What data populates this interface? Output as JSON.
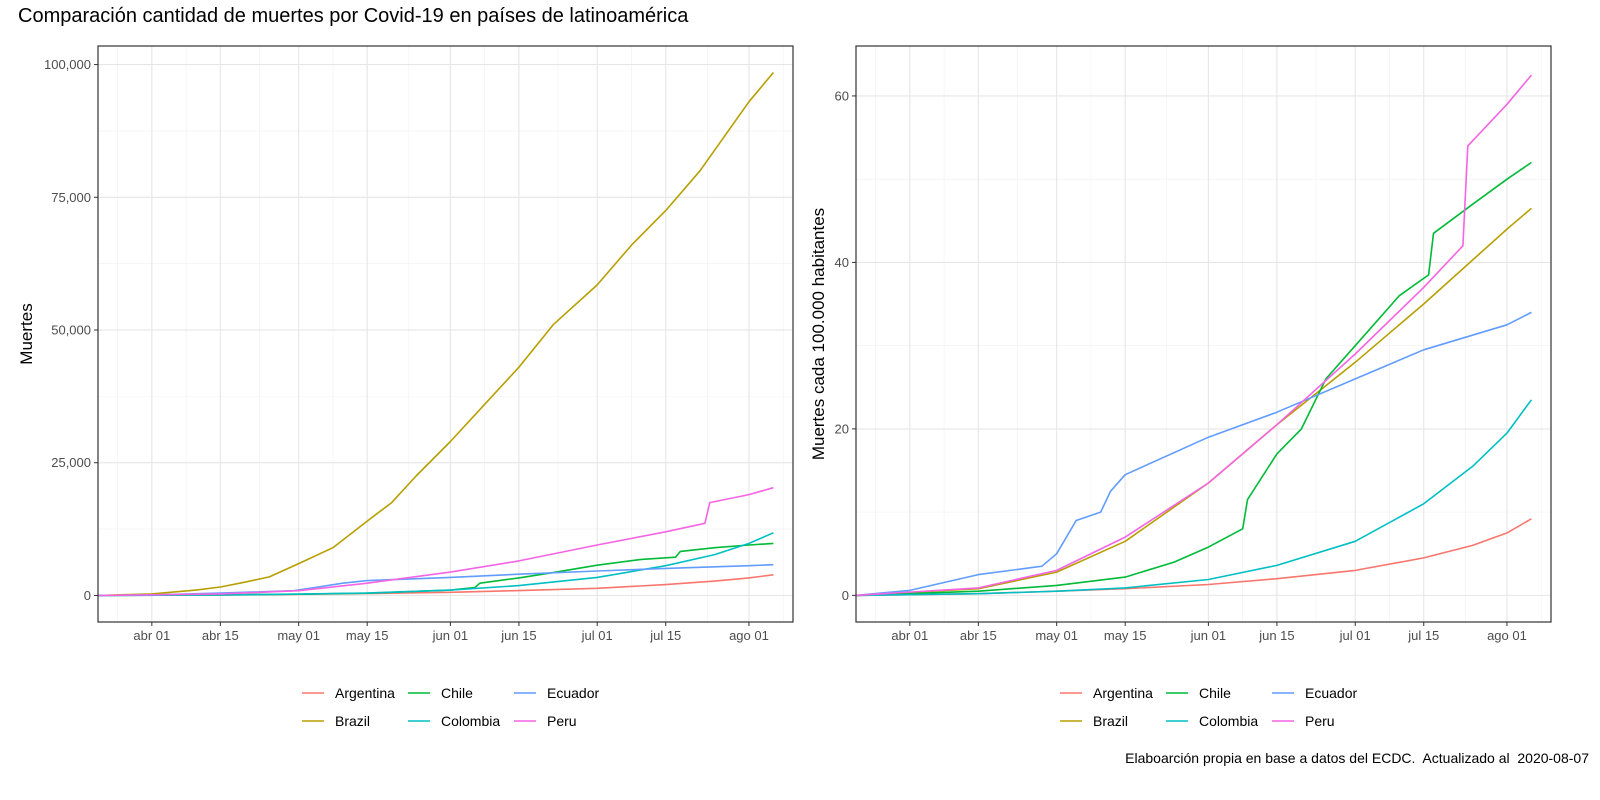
{
  "title": "Comparación cantidad de muertes por Covid-19 en países de latinoamérica",
  "caption": "Elaboarción propia en base a datos del ECDC.  Actualizado al  2020-08-07",
  "colors": {
    "Argentina": "#F8766D",
    "Brazil": "#B79F00",
    "Chile": "#00BA38",
    "Colombia": "#00BFC4",
    "Ecuador": "#619CFF",
    "Peru": "#F564E3"
  },
  "chart_data": [
    {
      "type": "line",
      "xlabel": "",
      "ylabel": "Muertes",
      "xlim": [
        "2020-03-21",
        "2020-08-10"
      ],
      "ylim": [
        -5000,
        103500
      ],
      "x_ticks": [
        "abr 01",
        "abr 15",
        "may 01",
        "may 15",
        "jun 01",
        "jun 15",
        "jul 01",
        "jul 15",
        "ago 01"
      ],
      "y_ticks": [
        "0",
        "25,000",
        "50,000",
        "75,000",
        "100,000"
      ],
      "grid": true,
      "legend_position": "bottom",
      "series": [
        {
          "name": "Argentina",
          "points": [
            [
              "2020-03-21",
              0
            ],
            [
              "2020-04-15",
              90
            ],
            [
              "2020-05-01",
              220
            ],
            [
              "2020-05-15",
              360
            ],
            [
              "2020-06-01",
              600
            ],
            [
              "2020-06-15",
              920
            ],
            [
              "2020-07-01",
              1350
            ],
            [
              "2020-07-15",
              2050
            ],
            [
              "2020-07-25",
              2700
            ],
            [
              "2020-08-01",
              3300
            ],
            [
              "2020-08-06",
              3900
            ]
          ]
        },
        {
          "name": "Brazil",
          "points": [
            [
              "2020-03-21",
              0
            ],
            [
              "2020-04-01",
              300
            ],
            [
              "2020-04-10",
              1000
            ],
            [
              "2020-04-15",
              1600
            ],
            [
              "2020-04-20",
              2500
            ],
            [
              "2020-04-25",
              3500
            ],
            [
              "2020-05-01",
              6000
            ],
            [
              "2020-05-08",
              9000
            ],
            [
              "2020-05-15",
              14000
            ],
            [
              "2020-05-20",
              17500
            ],
            [
              "2020-05-25",
              22500
            ],
            [
              "2020-06-01",
              29000
            ],
            [
              "2020-06-08",
              36000
            ],
            [
              "2020-06-15",
              43000
            ],
            [
              "2020-06-22",
              51000
            ],
            [
              "2020-07-01",
              58500
            ],
            [
              "2020-07-08",
              66000
            ],
            [
              "2020-07-15",
              72500
            ],
            [
              "2020-07-22",
              80000
            ],
            [
              "2020-08-01",
              93000
            ],
            [
              "2020-08-06",
              98500
            ]
          ]
        },
        {
          "name": "Chile",
          "points": [
            [
              "2020-03-21",
              0
            ],
            [
              "2020-04-15",
              100
            ],
            [
              "2020-05-01",
              230
            ],
            [
              "2020-05-15",
              420
            ],
            [
              "2020-06-01",
              1000
            ],
            [
              "2020-06-06",
              1500
            ],
            [
              "2020-06-07",
              2300
            ],
            [
              "2020-06-15",
              3300
            ],
            [
              "2020-06-22",
              4300
            ],
            [
              "2020-07-01",
              5700
            ],
            [
              "2020-07-10",
              6800
            ],
            [
              "2020-07-17",
              7200
            ],
            [
              "2020-07-18",
              8300
            ],
            [
              "2020-07-25",
              9000
            ],
            [
              "2020-08-01",
              9500
            ],
            [
              "2020-08-06",
              9800
            ]
          ]
        },
        {
          "name": "Colombia",
          "points": [
            [
              "2020-03-21",
              0
            ],
            [
              "2020-04-15",
              100
            ],
            [
              "2020-05-01",
              260
            ],
            [
              "2020-05-15",
              460
            ],
            [
              "2020-06-01",
              1000
            ],
            [
              "2020-06-15",
              1850
            ],
            [
              "2020-07-01",
              3400
            ],
            [
              "2020-07-15",
              5600
            ],
            [
              "2020-07-25",
              7700
            ],
            [
              "2020-08-01",
              9800
            ],
            [
              "2020-08-06",
              11800
            ]
          ]
        },
        {
          "name": "Ecuador",
          "points": [
            [
              "2020-03-21",
              0
            ],
            [
              "2020-04-01",
              110
            ],
            [
              "2020-04-15",
              450
            ],
            [
              "2020-04-30",
              900
            ],
            [
              "2020-05-05",
              1600
            ],
            [
              "2020-05-10",
              2300
            ],
            [
              "2020-05-15",
              2800
            ],
            [
              "2020-06-01",
              3400
            ],
            [
              "2020-06-15",
              4000
            ],
            [
              "2020-07-01",
              4600
            ],
            [
              "2020-07-15",
              5100
            ],
            [
              "2020-08-01",
              5600
            ],
            [
              "2020-08-06",
              5800
            ]
          ]
        },
        {
          "name": "Peru",
          "points": [
            [
              "2020-03-21",
              0
            ],
            [
              "2020-04-15",
              300
            ],
            [
              "2020-05-01",
              900
            ],
            [
              "2020-05-15",
              2300
            ],
            [
              "2020-06-01",
              4400
            ],
            [
              "2020-06-15",
              6500
            ],
            [
              "2020-07-01",
              9500
            ],
            [
              "2020-07-15",
              12000
            ],
            [
              "2020-07-23",
              13600
            ],
            [
              "2020-07-24",
              17500
            ],
            [
              "2020-08-01",
              19000
            ],
            [
              "2020-08-06",
              20300
            ]
          ]
        }
      ]
    },
    {
      "type": "line",
      "xlabel": "",
      "ylabel": "Muertes cada 100.000 habitantes",
      "xlim": [
        "2020-03-21",
        "2020-08-10"
      ],
      "ylim": [
        -3.2,
        66
      ],
      "x_ticks": [
        "abr 01",
        "abr 15",
        "may 01",
        "may 15",
        "jun 01",
        "jun 15",
        "jul 01",
        "jul 15",
        "ago 01"
      ],
      "y_ticks": [
        "0",
        "20",
        "40",
        "60"
      ],
      "grid": true,
      "legend_position": "bottom",
      "series": [
        {
          "name": "Argentina",
          "points": [
            [
              "2020-03-21",
              0
            ],
            [
              "2020-04-15",
              0.2
            ],
            [
              "2020-05-01",
              0.5
            ],
            [
              "2020-05-15",
              0.8
            ],
            [
              "2020-06-01",
              1.3
            ],
            [
              "2020-06-15",
              2.0
            ],
            [
              "2020-07-01",
              3.0
            ],
            [
              "2020-07-15",
              4.5
            ],
            [
              "2020-07-25",
              6.0
            ],
            [
              "2020-08-01",
              7.5
            ],
            [
              "2020-08-06",
              9.2
            ]
          ]
        },
        {
          "name": "Brazil",
          "points": [
            [
              "2020-03-21",
              0
            ],
            [
              "2020-04-15",
              0.8
            ],
            [
              "2020-05-01",
              2.8
            ],
            [
              "2020-05-15",
              6.5
            ],
            [
              "2020-06-01",
              13.5
            ],
            [
              "2020-06-15",
              20.5
            ],
            [
              "2020-07-01",
              28.0
            ],
            [
              "2020-07-15",
              35.0
            ],
            [
              "2020-08-01",
              44.0
            ],
            [
              "2020-08-06",
              46.5
            ]
          ]
        },
        {
          "name": "Chile",
          "points": [
            [
              "2020-03-21",
              0
            ],
            [
              "2020-04-15",
              0.5
            ],
            [
              "2020-05-01",
              1.2
            ],
            [
              "2020-05-15",
              2.2
            ],
            [
              "2020-05-25",
              4.0
            ],
            [
              "2020-06-01",
              5.8
            ],
            [
              "2020-06-08",
              8.0
            ],
            [
              "2020-06-09",
              11.5
            ],
            [
              "2020-06-15",
              17.0
            ],
            [
              "2020-06-20",
              20.0
            ],
            [
              "2020-06-25",
              26.0
            ],
            [
              "2020-07-01",
              30.0
            ],
            [
              "2020-07-10",
              36.0
            ],
            [
              "2020-07-16",
              38.5
            ],
            [
              "2020-07-17",
              43.5
            ],
            [
              "2020-07-25",
              47.0
            ],
            [
              "2020-08-01",
              50.0
            ],
            [
              "2020-08-06",
              52.0
            ]
          ]
        },
        {
          "name": "Colombia",
          "points": [
            [
              "2020-03-21",
              0
            ],
            [
              "2020-04-15",
              0.2
            ],
            [
              "2020-05-01",
              0.5
            ],
            [
              "2020-05-15",
              0.9
            ],
            [
              "2020-06-01",
              1.9
            ],
            [
              "2020-06-15",
              3.6
            ],
            [
              "2020-07-01",
              6.5
            ],
            [
              "2020-07-15",
              11.0
            ],
            [
              "2020-07-25",
              15.5
            ],
            [
              "2020-08-01",
              19.5
            ],
            [
              "2020-08-06",
              23.5
            ]
          ]
        },
        {
          "name": "Ecuador",
          "points": [
            [
              "2020-03-21",
              0
            ],
            [
              "2020-04-01",
              0.6
            ],
            [
              "2020-04-15",
              2.5
            ],
            [
              "2020-04-28",
              3.5
            ],
            [
              "2020-05-01",
              5.0
            ],
            [
              "2020-05-05",
              9.0
            ],
            [
              "2020-05-10",
              10.0
            ],
            [
              "2020-05-12",
              12.5
            ],
            [
              "2020-05-15",
              14.5
            ],
            [
              "2020-06-01",
              19.0
            ],
            [
              "2020-06-15",
              22.0
            ],
            [
              "2020-07-01",
              26.0
            ],
            [
              "2020-07-15",
              29.5
            ],
            [
              "2020-08-01",
              32.5
            ],
            [
              "2020-08-06",
              34.0
            ]
          ]
        },
        {
          "name": "Peru",
          "points": [
            [
              "2020-03-21",
              0
            ],
            [
              "2020-04-15",
              0.9
            ],
            [
              "2020-05-01",
              3.0
            ],
            [
              "2020-05-15",
              7.0
            ],
            [
              "2020-06-01",
              13.5
            ],
            [
              "2020-06-15",
              20.5
            ],
            [
              "2020-07-01",
              29.0
            ],
            [
              "2020-07-15",
              37.0
            ],
            [
              "2020-07-23",
              42.0
            ],
            [
              "2020-07-24",
              54.0
            ],
            [
              "2020-08-01",
              59.0
            ],
            [
              "2020-08-06",
              62.5
            ]
          ]
        }
      ]
    }
  ]
}
